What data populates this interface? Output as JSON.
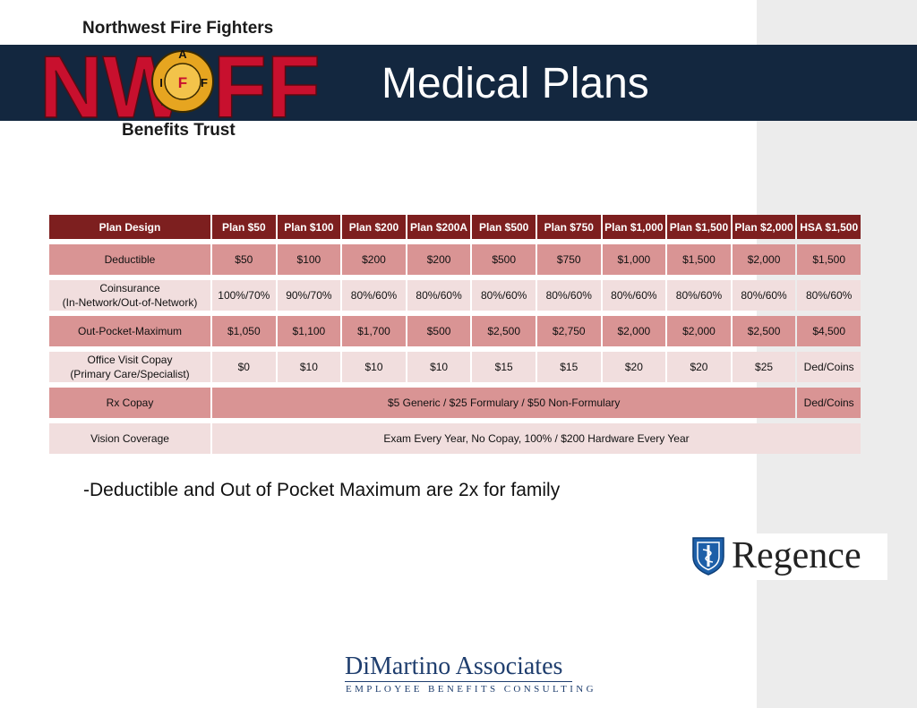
{
  "logo": {
    "top_text": "Northwest Fire Fighters",
    "letters_left": "NW",
    "letters_right": "FF",
    "emblem_letters": [
      "A",
      "I",
      "F",
      "F"
    ],
    "bottom_text": "Benefits Trust"
  },
  "title": "Medical Plans",
  "table": {
    "headers": [
      "Plan Design",
      "Plan $50",
      "Plan $100",
      "Plan $200",
      "Plan $200A",
      "Plan $500",
      "Plan $750",
      "Plan $1,000",
      "Plan $1,500",
      "Plan $2,000",
      "HSA $1,500"
    ],
    "deductible": {
      "label": "Deductible",
      "values": [
        "$50",
        "$100",
        "$200",
        "$200",
        "$500",
        "$750",
        "$1,000",
        "$1,500",
        "$2,000",
        "$1,500"
      ]
    },
    "coinsurance": {
      "label_line1": "Coinsurance",
      "label_line2": "(In-Network/Out-of-Network)",
      "values": [
        "100%/70%",
        "90%/70%",
        "80%/60%",
        "80%/60%",
        "80%/60%",
        "80%/60%",
        "80%/60%",
        "80%/60%",
        "80%/60%",
        "80%/60%"
      ]
    },
    "oop": {
      "label": "Out-Pocket-Maximum",
      "values": [
        "$1,050",
        "$1,100",
        "$1,700",
        "$500",
        "$2,500",
        "$2,750",
        "$2,000",
        "$2,000",
        "$2,500",
        "$4,500"
      ]
    },
    "office_visit": {
      "label_line1": "Office Visit Copay",
      "label_line2": "(Primary Care/Specialist)",
      "values": [
        "$0",
        "$10",
        "$10",
        "$10",
        "$15",
        "$15",
        "$20",
        "$20",
        "$25",
        "Ded/Coins"
      ]
    },
    "rx": {
      "label": "Rx Copay",
      "merged": "$5 Generic / $25 Formulary / $50 Non-Formulary",
      "hsa": "Ded/Coins"
    },
    "vision": {
      "label": "Vision Coverage",
      "merged": "Exam Every Year, No Copay, 100% / $200 Hardware Every Year"
    }
  },
  "note": "-Deductible and Out of Pocket Maximum are 2x for family",
  "regence": {
    "name": "Regence",
    "icon": "blue-cross-blue-shield-icon"
  },
  "footer": {
    "name": "DiMartino Associates",
    "tagline": "EMPLOYEE BENEFITS CONSULTING"
  },
  "colors": {
    "navy": "#13273f",
    "header_red": "#7d1f1f",
    "row_dark": "#d99494",
    "row_light": "#f1dede",
    "logo_red": "#c8102e",
    "panel_gray": "#ececec"
  }
}
